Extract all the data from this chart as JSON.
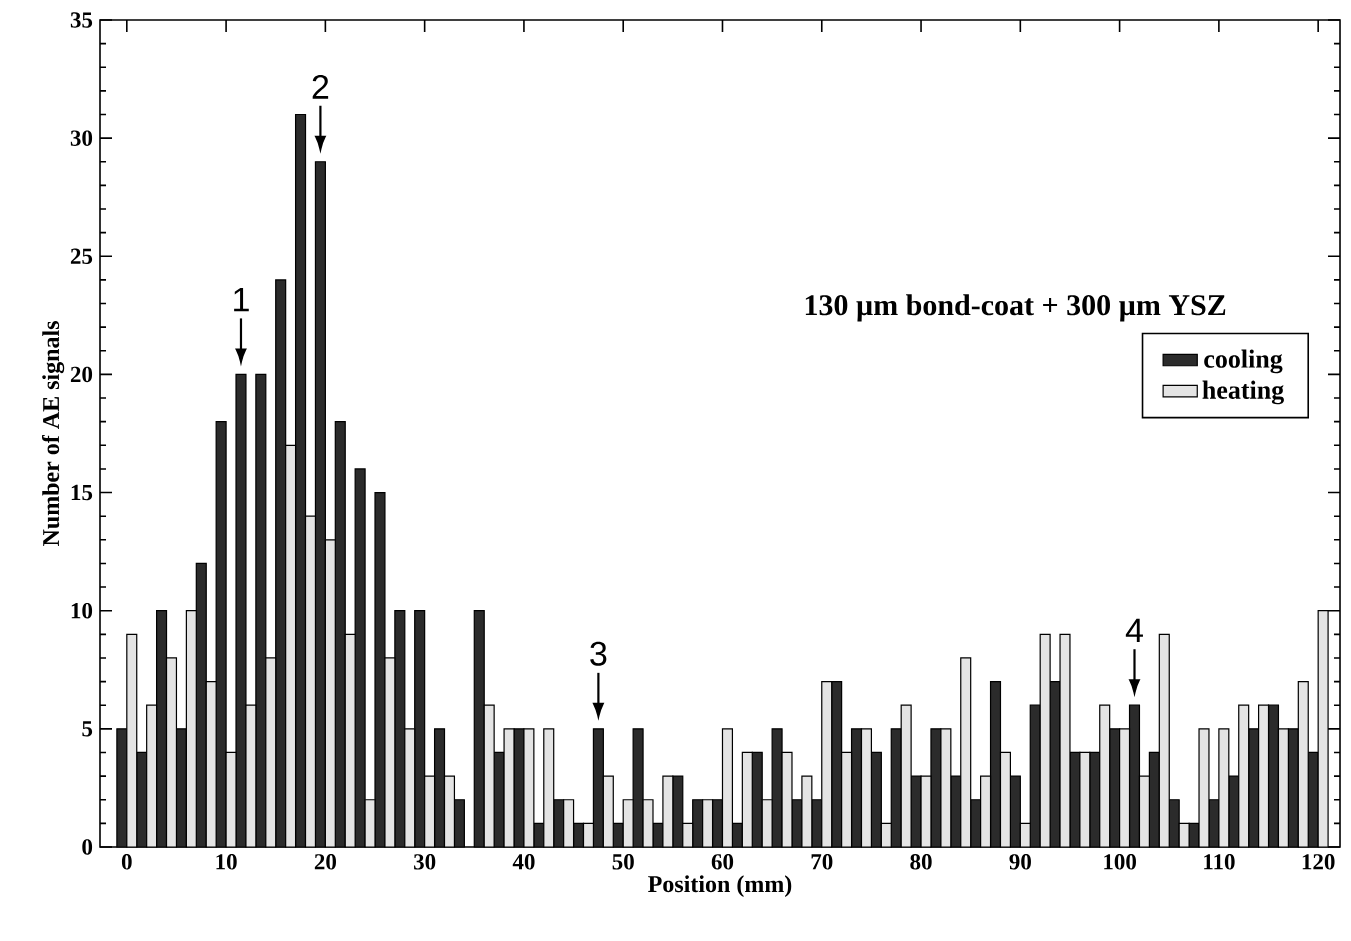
{
  "chart_data": {
    "type": "bar",
    "xlabel": "Position (mm)",
    "ylabel": "Number of AE signals",
    "x": [
      0,
      2,
      4,
      6,
      8,
      10,
      12,
      14,
      16,
      18,
      20,
      22,
      24,
      26,
      28,
      30,
      32,
      34,
      36,
      38,
      40,
      42,
      44,
      46,
      48,
      50,
      52,
      54,
      56,
      58,
      60,
      62,
      64,
      66,
      68,
      70,
      72,
      74,
      76,
      78,
      80,
      82,
      84,
      86,
      88,
      90,
      92,
      94,
      96,
      98,
      100,
      102,
      104,
      106,
      108,
      110,
      112,
      114,
      116,
      118,
      120
    ],
    "series": [
      {
        "name": "cooling",
        "color": "#2b2b2b",
        "values": [
          5,
          4,
          10,
          5,
          12,
          18,
          20,
          20,
          24,
          31,
          29,
          18,
          16,
          15,
          10,
          10,
          5,
          2,
          10,
          4,
          5,
          1,
          2,
          1,
          5,
          1,
          5,
          1,
          3,
          2,
          2,
          1,
          4,
          5,
          2,
          2,
          7,
          5,
          4,
          5,
          3,
          5,
          3,
          2,
          7,
          3,
          6,
          7,
          4,
          4,
          5,
          6,
          4,
          2,
          1,
          2,
          3,
          5,
          6,
          5,
          4
        ]
      },
      {
        "name": "heating",
        "color": "#e4e4e4",
        "values": [
          9,
          6,
          8,
          10,
          7,
          4,
          6,
          8,
          17,
          14,
          13,
          9,
          2,
          8,
          5,
          3,
          3,
          null,
          6,
          5,
          5,
          5,
          2,
          1,
          3,
          2,
          2,
          3,
          1,
          2,
          5,
          4,
          2,
          4,
          3,
          7,
          4,
          5,
          1,
          6,
          3,
          5,
          8,
          3,
          4,
          1,
          9,
          9,
          4,
          6,
          5,
          3,
          9,
          1,
          5,
          5,
          6,
          6,
          5,
          7,
          10
        ]
      }
    ],
    "xlim": [
      -2.7,
      122.2
    ],
    "ylim": [
      0,
      35
    ],
    "xticks": [
      0,
      10,
      20,
      30,
      40,
      50,
      60,
      70,
      80,
      90,
      100,
      110,
      120
    ],
    "yticks": [
      0,
      5,
      10,
      15,
      20,
      25,
      30,
      35
    ],
    "grid": false,
    "legend": "right",
    "annotations": [
      {
        "text": "1",
        "x": 12,
        "y": 20
      },
      {
        "text": "2",
        "x": 20,
        "y": 29
      },
      {
        "text": "3",
        "x": 48,
        "y": 5
      },
      {
        "text": "4",
        "x": 102,
        "y": 6
      },
      "130 µm bond-coat + 300 µm YSZ"
    ]
  }
}
